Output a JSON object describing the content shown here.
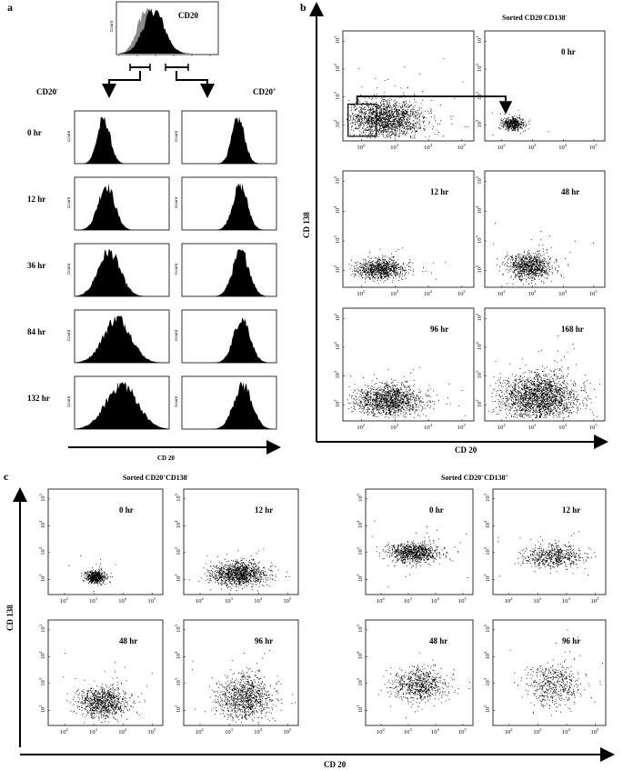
{
  "figure": {
    "panel_a_letter": "a",
    "panel_b_letter": "b",
    "panel_c_letter": "c"
  },
  "panel_a": {
    "top_histogram_label": "CD20",
    "neg_label": "CD20",
    "neg_sup": "-",
    "pos_label": "CD20",
    "pos_sup": "+",
    "count_label": "Count",
    "xaxis_label": "CD 20"
  },
  "panel_b": {
    "sorted_title": "Sorted CD20",
    "sorted_title_sup1": "-",
    "sorted_title_mid": "CD138",
    "sorted_title_sup2": "-",
    "yaxis_label": "CD 138",
    "xaxis_label": "CD 20"
  },
  "panel_c": {
    "left_title": "Sorted CD20",
    "left_sup1": "+",
    "left_mid": "CD138",
    "left_sup2": "-",
    "right_title": "Sorted CD20",
    "right_sup1": "+",
    "right_mid": "CD138",
    "right_sup2": "+",
    "yaxis_label": "CD 138",
    "xaxis_label": "CD 20"
  },
  "chart_data": [
    {
      "panel": "a",
      "type": "histogram",
      "title": "CD20",
      "xlabel": "CD 20",
      "ylabel": "Count",
      "rows": [
        {
          "time": "0 hr",
          "neg_center": 0.3,
          "neg_width": 0.07,
          "pos_center": 0.6,
          "pos_width": 0.07
        },
        {
          "time": "12 hr",
          "neg_center": 0.33,
          "neg_width": 0.09,
          "pos_center": 0.62,
          "pos_width": 0.08
        },
        {
          "time": "36 hr",
          "neg_center": 0.36,
          "neg_width": 0.12,
          "pos_center": 0.63,
          "pos_width": 0.09
        },
        {
          "time": "84 hr",
          "neg_center": 0.45,
          "neg_width": 0.15,
          "pos_center": 0.64,
          "pos_width": 0.09
        },
        {
          "time": "132 hr",
          "neg_center": 0.5,
          "neg_width": 0.17,
          "pos_center": 0.65,
          "pos_width": 0.1
        }
      ]
    },
    {
      "panel": "b",
      "type": "scatter",
      "xlabel": "CD 20",
      "ylabel": "CD 138",
      "x_ticks": [
        "10",
        "10",
        "10",
        "10"
      ],
      "x_tick_exps": [
        "2",
        "3",
        "4",
        "5"
      ],
      "y_ticks": [
        "10",
        "10",
        "10",
        "10"
      ],
      "y_tick_exps": [
        "2",
        "3",
        "4",
        "5"
      ],
      "plots": [
        {
          "time": "",
          "x_log": 2.7,
          "y_log": 2.2,
          "sx": 0.55,
          "sy": 0.35,
          "n": 1800
        },
        {
          "time": "0 hr",
          "x_log": 2.35,
          "y_log": 2.05,
          "sx": 0.17,
          "sy": 0.12,
          "n": 450
        },
        {
          "time": "12 hr",
          "x_log": 2.55,
          "y_log": 2.05,
          "sx": 0.35,
          "sy": 0.17,
          "n": 900
        },
        {
          "time": "48 hr",
          "x_log": 2.9,
          "y_log": 2.15,
          "sx": 0.35,
          "sy": 0.22,
          "n": 900
        },
        {
          "time": "96 hr",
          "x_log": 2.8,
          "y_log": 2.15,
          "sx": 0.48,
          "sy": 0.27,
          "n": 1400
        },
        {
          "time": "168 hr",
          "x_log": 3.2,
          "y_log": 2.25,
          "sx": 0.6,
          "sy": 0.4,
          "n": 2200
        }
      ]
    },
    {
      "panel": "c",
      "type": "scatter",
      "xlabel": "CD 20",
      "ylabel": "CD 138",
      "x_ticks": [
        "10",
        "10",
        "10",
        "10"
      ],
      "x_tick_exps": [
        "2",
        "3",
        "4",
        "5"
      ],
      "y_ticks": [
        "10",
        "10",
        "10",
        "10"
      ],
      "y_tick_exps": [
        "2",
        "3",
        "4",
        "5"
      ],
      "plots": [
        {
          "time": "0 hr",
          "x_log": 3.05,
          "y_log": 2.1,
          "sx": 0.16,
          "sy": 0.12,
          "n": 550
        },
        {
          "time": "12 hr",
          "x_log": 3.3,
          "y_log": 2.2,
          "sx": 0.45,
          "sy": 0.22,
          "n": 1200
        },
        {
          "time": "48 hr",
          "x_log": 3.3,
          "y_log": 2.3,
          "sx": 0.4,
          "sy": 0.28,
          "n": 900
        },
        {
          "time": "96 hr",
          "x_log": 3.5,
          "y_log": 2.45,
          "sx": 0.45,
          "sy": 0.42,
          "n": 1000
        },
        {
          "time": "0 hr",
          "x_log": 3.2,
          "y_log": 3.0,
          "sx": 0.45,
          "sy": 0.18,
          "n": 900
        },
        {
          "time": "12 hr",
          "x_log": 3.5,
          "y_log": 2.85,
          "sx": 0.48,
          "sy": 0.22,
          "n": 600
        },
        {
          "time": "48 hr",
          "x_log": 3.4,
          "y_log": 2.95,
          "sx": 0.5,
          "sy": 0.3,
          "n": 700
        },
        {
          "time": "96 hr",
          "x_log": 3.55,
          "y_log": 2.95,
          "sx": 0.45,
          "sy": 0.38,
          "n": 500
        }
      ]
    }
  ]
}
